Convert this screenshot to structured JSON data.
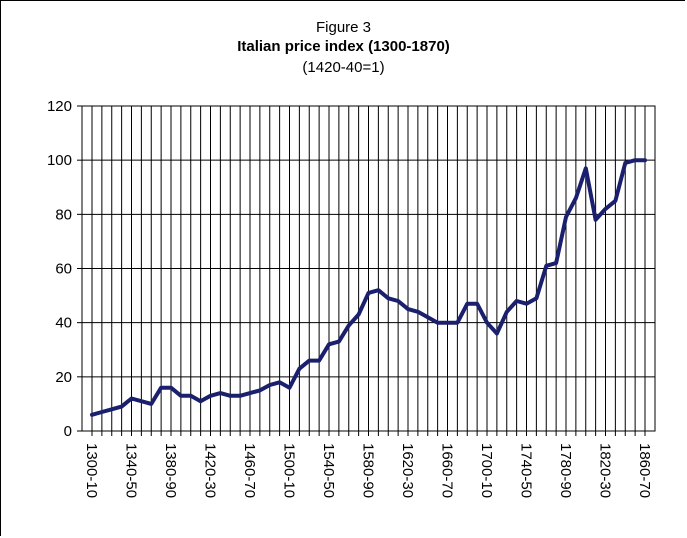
{
  "header": {
    "figure_label": "Figure 3",
    "title": "Italian price index (1300-1870)",
    "subtitle": "(1420-40=1)"
  },
  "chart_data": {
    "type": "line",
    "title": "Italian price index (1300-1870)",
    "subtitle": "(1420-40=1)",
    "xlabel": "",
    "ylabel": "",
    "ylim": [
      0,
      120
    ],
    "yticks": [
      0,
      20,
      40,
      60,
      80,
      100,
      120
    ],
    "grid": true,
    "legend": "none",
    "x_tick_labels": [
      "1300-10",
      "1340-50",
      "1380-90",
      "1420-30",
      "1460-70",
      "1500-10",
      "1540-50",
      "1580-90",
      "1620-30",
      "1660-70",
      "1700-10",
      "1740-50",
      "1780-90",
      "1820-30",
      "1860-70"
    ],
    "x": [
      "1300-10",
      "1310-20",
      "1320-30",
      "1330-40",
      "1340-50",
      "1350-60",
      "1360-70",
      "1370-80",
      "1380-90",
      "1390-1400",
      "1400-10",
      "1410-20",
      "1420-30",
      "1430-40",
      "1440-50",
      "1450-60",
      "1460-70",
      "1470-80",
      "1480-90",
      "1490-1500",
      "1500-10",
      "1510-20",
      "1520-30",
      "1530-40",
      "1540-50",
      "1550-60",
      "1560-70",
      "1570-80",
      "1580-90",
      "1590-1600",
      "1600-10",
      "1610-20",
      "1620-30",
      "1630-40",
      "1640-50",
      "1650-60",
      "1660-70",
      "1670-80",
      "1680-90",
      "1690-1700",
      "1700-10",
      "1710-20",
      "1720-30",
      "1730-40",
      "1740-50",
      "1750-60",
      "1760-70",
      "1770-80",
      "1780-90",
      "1790-1800",
      "1800-10",
      "1810-20",
      "1820-30",
      "1830-40",
      "1840-50",
      "1850-60",
      "1860-70"
    ],
    "series": [
      {
        "color": "#1a1f6e",
        "values": [
          6,
          7,
          8,
          9,
          12,
          11,
          10,
          16,
          16,
          13,
          13,
          11,
          13,
          14,
          13,
          13,
          14,
          15,
          17,
          18,
          16,
          23,
          26,
          26,
          32,
          33,
          39,
          43,
          51,
          52,
          49,
          48,
          45,
          44,
          42,
          40,
          40,
          40,
          47,
          47,
          40,
          36,
          44,
          48,
          47,
          49,
          61,
          62,
          79,
          86,
          97,
          78,
          82,
          85,
          99,
          100,
          100
        ]
      }
    ]
  }
}
